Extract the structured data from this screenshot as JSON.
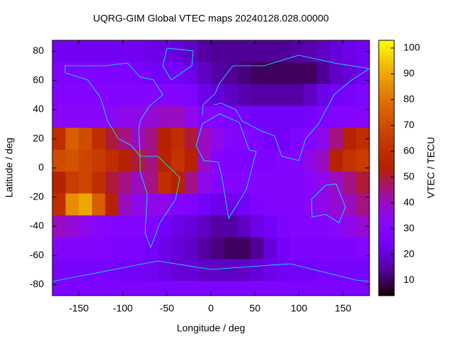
{
  "chart_data": {
    "type": "heatmap",
    "title": "UQRG-GIM Global VTEC maps 20240128.028.00000",
    "xlabel": "Longitude / deg",
    "ylabel": "Latitude / deg",
    "colorbar_label": "VTEC / TECU",
    "colormap": "gnuplot",
    "xlim": [
      -180,
      180
    ],
    "ylim": [
      -87.5,
      87.5
    ],
    "cblim": [
      4,
      103
    ],
    "xticks": [
      -150,
      -100,
      -50,
      0,
      50,
      100,
      150
    ],
    "yticks": [
      -80,
      -60,
      -40,
      -20,
      0,
      20,
      40,
      60,
      80
    ],
    "cbticks": [
      10,
      20,
      30,
      40,
      50,
      60,
      70,
      80,
      90,
      100
    ],
    "x": [
      -172.5,
      -157.5,
      -142.5,
      -127.5,
      -112.5,
      -97.5,
      -82.5,
      -67.5,
      -52.5,
      -37.5,
      -22.5,
      -7.5,
      7.5,
      22.5,
      37.5,
      52.5,
      67.5,
      82.5,
      97.5,
      112.5,
      127.5,
      142.5,
      157.5,
      172.5
    ],
    "y": [
      80,
      65,
      50,
      35,
      20,
      5,
      -10,
      -25,
      -40,
      -55,
      -70,
      -85
    ],
    "values": [
      [
        24,
        24,
        24,
        24,
        24,
        24,
        24,
        22,
        22,
        20,
        18,
        15,
        14,
        14,
        14,
        14,
        14,
        14,
        15,
        16,
        18,
        20,
        22,
        24
      ],
      [
        28,
        28,
        28,
        28,
        28,
        28,
        27,
        25,
        25,
        25,
        22,
        18,
        15,
        14,
        12,
        10,
        10,
        10,
        10,
        10,
        14,
        18,
        20,
        24
      ],
      [
        30,
        30,
        30,
        30,
        30,
        30,
        30,
        30,
        30,
        30,
        28,
        22,
        20,
        18,
        16,
        15,
        15,
        15,
        15,
        18,
        22,
        25,
        26,
        28
      ],
      [
        32,
        32,
        32,
        32,
        33,
        35,
        35,
        38,
        40,
        40,
        35,
        30,
        30,
        28,
        26,
        25,
        25,
        25,
        25,
        26,
        28,
        30,
        30,
        31
      ],
      [
        60,
        75,
        70,
        60,
        50,
        45,
        40,
        45,
        55,
        60,
        50,
        40,
        35,
        30,
        30,
        28,
        25,
        25,
        28,
        30,
        35,
        45,
        55,
        60
      ],
      [
        70,
        72,
        68,
        65,
        60,
        55,
        50,
        45,
        55,
        62,
        55,
        40,
        30,
        28,
        28,
        28,
        28,
        30,
        30,
        35,
        40,
        55,
        62,
        65
      ],
      [
        55,
        65,
        68,
        60,
        50,
        45,
        40,
        45,
        60,
        55,
        45,
        35,
        30,
        30,
        30,
        30,
        30,
        30,
        30,
        32,
        35,
        40,
        45,
        50
      ],
      [
        60,
        85,
        90,
        75,
        55,
        40,
        35,
        35,
        35,
        30,
        28,
        25,
        22,
        22,
        25,
        28,
        30,
        30,
        30,
        32,
        35,
        38,
        40,
        45
      ],
      [
        40,
        38,
        35,
        32,
        30,
        30,
        30,
        28,
        25,
        22,
        20,
        18,
        15,
        15,
        18,
        22,
        25,
        28,
        30,
        30,
        30,
        32,
        35,
        38
      ],
      [
        30,
        30,
        30,
        30,
        28,
        28,
        28,
        25,
        22,
        20,
        18,
        15,
        12,
        10,
        10,
        14,
        20,
        25,
        28,
        28,
        28,
        28,
        28,
        30
      ],
      [
        26,
        26,
        26,
        26,
        26,
        25,
        25,
        24,
        22,
        20,
        20,
        18,
        18,
        18,
        18,
        20,
        22,
        24,
        25,
        25,
        26,
        26,
        26,
        26
      ],
      [
        28,
        28,
        28,
        28,
        28,
        28,
        28,
        28,
        28,
        28,
        28,
        28,
        28,
        28,
        28,
        28,
        28,
        28,
        28,
        28,
        28,
        28,
        28,
        28
      ]
    ]
  }
}
